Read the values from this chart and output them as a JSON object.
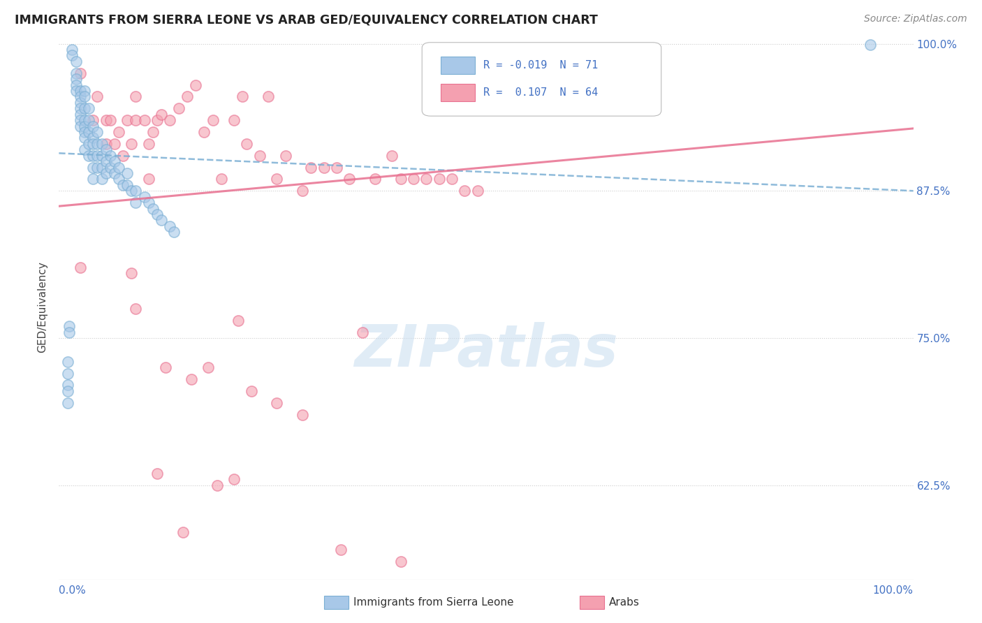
{
  "title": "IMMIGRANTS FROM SIERRA LEONE VS ARAB GED/EQUIVALENCY CORRELATION CHART",
  "source": "Source: ZipAtlas.com",
  "ylabel": "GED/Equivalency",
  "legend_label1": "Immigrants from Sierra Leone",
  "legend_label2": "Arabs",
  "R1": -0.019,
  "N1": 71,
  "R2": 0.107,
  "N2": 64,
  "xmin": 0.0,
  "xmax": 1.0,
  "ymin": 0.545,
  "ymax": 1.008,
  "yticks": [
    0.625,
    0.75,
    0.875,
    1.0
  ],
  "ytick_labels": [
    "62.5%",
    "75.0%",
    "87.5%",
    "100.0%"
  ],
  "blue_color": "#a8c8e8",
  "pink_color": "#f4a0b0",
  "blue_line_color": "#7bafd4",
  "pink_line_color": "#e87090",
  "watermark": "ZIPatlas",
  "blue_trend_x": [
    0.0,
    1.0
  ],
  "blue_trend_y": [
    0.907,
    0.875
  ],
  "pink_trend_x": [
    0.0,
    1.0
  ],
  "pink_trend_y": [
    0.862,
    0.928
  ],
  "blue_x": [
    0.015,
    0.015,
    0.02,
    0.02,
    0.02,
    0.02,
    0.02,
    0.025,
    0.025,
    0.025,
    0.025,
    0.025,
    0.025,
    0.025,
    0.03,
    0.03,
    0.03,
    0.03,
    0.03,
    0.03,
    0.03,
    0.03,
    0.035,
    0.035,
    0.035,
    0.035,
    0.035,
    0.04,
    0.04,
    0.04,
    0.04,
    0.04,
    0.04,
    0.045,
    0.045,
    0.045,
    0.045,
    0.05,
    0.05,
    0.05,
    0.05,
    0.055,
    0.055,
    0.055,
    0.06,
    0.06,
    0.065,
    0.065,
    0.07,
    0.07,
    0.075,
    0.08,
    0.08,
    0.085,
    0.09,
    0.09,
    0.1,
    0.105,
    0.11,
    0.115,
    0.12,
    0.13,
    0.135,
    0.01,
    0.01,
    0.01,
    0.01,
    0.01,
    0.012,
    0.012,
    0.95
  ],
  "blue_y": [
    0.995,
    0.99,
    0.985,
    0.975,
    0.97,
    0.965,
    0.96,
    0.96,
    0.955,
    0.95,
    0.945,
    0.94,
    0.935,
    0.93,
    0.96,
    0.955,
    0.945,
    0.935,
    0.93,
    0.925,
    0.92,
    0.91,
    0.945,
    0.935,
    0.925,
    0.915,
    0.905,
    0.93,
    0.92,
    0.915,
    0.905,
    0.895,
    0.885,
    0.925,
    0.915,
    0.905,
    0.895,
    0.915,
    0.905,
    0.895,
    0.885,
    0.91,
    0.9,
    0.89,
    0.905,
    0.895,
    0.9,
    0.89,
    0.895,
    0.885,
    0.88,
    0.89,
    0.88,
    0.875,
    0.875,
    0.865,
    0.87,
    0.865,
    0.86,
    0.855,
    0.85,
    0.845,
    0.84,
    0.73,
    0.72,
    0.71,
    0.705,
    0.695,
    0.76,
    0.755,
    0.999
  ],
  "pink_x": [
    0.025,
    0.025,
    0.04,
    0.045,
    0.055,
    0.055,
    0.06,
    0.065,
    0.07,
    0.075,
    0.08,
    0.085,
    0.09,
    0.09,
    0.1,
    0.105,
    0.11,
    0.115,
    0.12,
    0.13,
    0.14,
    0.15,
    0.16,
    0.17,
    0.18,
    0.19,
    0.205,
    0.215,
    0.22,
    0.235,
    0.245,
    0.255,
    0.265,
    0.285,
    0.295,
    0.31,
    0.325,
    0.34,
    0.355,
    0.37,
    0.39,
    0.4,
    0.415,
    0.43,
    0.445,
    0.46,
    0.475,
    0.49,
    0.085,
    0.09,
    0.105,
    0.125,
    0.155,
    0.175,
    0.21,
    0.225,
    0.255,
    0.285,
    0.185,
    0.205,
    0.115,
    0.145,
    0.33,
    0.4
  ],
  "pink_y": [
    0.975,
    0.81,
    0.935,
    0.955,
    0.935,
    0.915,
    0.935,
    0.915,
    0.925,
    0.905,
    0.935,
    0.915,
    0.955,
    0.935,
    0.935,
    0.915,
    0.925,
    0.935,
    0.94,
    0.935,
    0.945,
    0.955,
    0.965,
    0.925,
    0.935,
    0.885,
    0.935,
    0.955,
    0.915,
    0.905,
    0.955,
    0.885,
    0.905,
    0.875,
    0.895,
    0.895,
    0.895,
    0.885,
    0.755,
    0.885,
    0.905,
    0.885,
    0.885,
    0.885,
    0.885,
    0.885,
    0.875,
    0.875,
    0.805,
    0.775,
    0.885,
    0.725,
    0.715,
    0.725,
    0.765,
    0.705,
    0.695,
    0.685,
    0.625,
    0.63,
    0.635,
    0.585,
    0.57,
    0.56
  ]
}
